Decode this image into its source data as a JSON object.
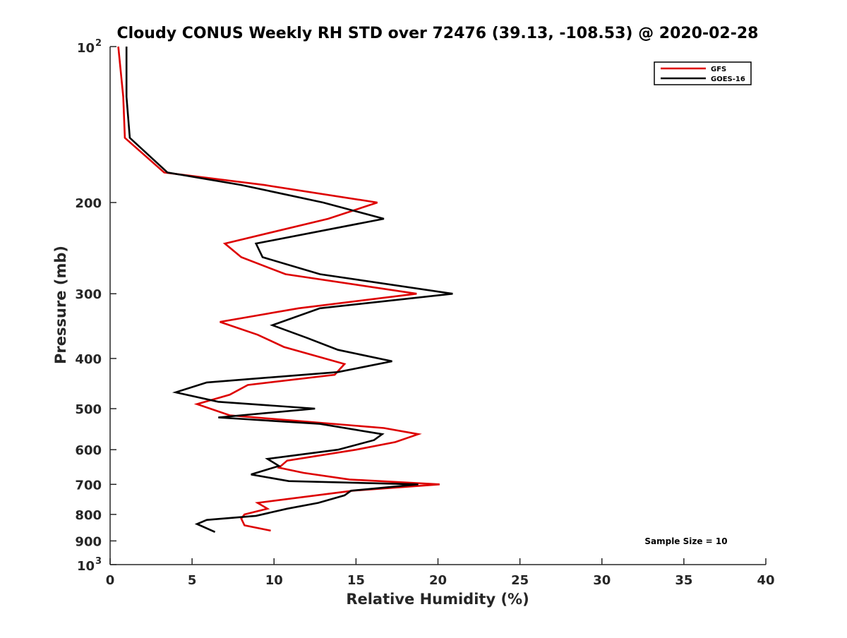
{
  "chart_data": {
    "type": "line",
    "title": "Cloudy CONUS Weekly RH STD over 72476 (39.13, -108.53) @ 2020-02-28",
    "xlabel": "Relative Humidity (%)",
    "ylabel": "Pressure (mb)",
    "xlim": [
      0,
      40
    ],
    "ylim": [
      100,
      1000
    ],
    "yscale": "log",
    "yaxis_reversed": true,
    "x_ticks": [
      "0",
      "5",
      "10",
      "15",
      "20",
      "25",
      "30",
      "35",
      "40"
    ],
    "y_ticks": [
      {
        "value": 100,
        "base": "10",
        "exp": "2"
      },
      {
        "value": 200,
        "label": "200"
      },
      {
        "value": 300,
        "label": "300"
      },
      {
        "value": 400,
        "label": "400"
      },
      {
        "value": 500,
        "label": "500"
      },
      {
        "value": 600,
        "label": "600"
      },
      {
        "value": 700,
        "label": "700"
      },
      {
        "value": 800,
        "label": "800"
      },
      {
        "value": 900,
        "label": "900"
      },
      {
        "value": 1000,
        "base": "10",
        "exp": "3"
      }
    ],
    "legend_position": "top-right",
    "grid": false,
    "annotation": "Sample Size = 10",
    "series": [
      {
        "name": "GFS",
        "color": "#dd0000",
        "points": [
          [
            0.5,
            100
          ],
          [
            0.8,
            125
          ],
          [
            0.9,
            150
          ],
          [
            3.3,
            175
          ],
          [
            9.4,
            185
          ],
          [
            16.3,
            200
          ],
          [
            13.3,
            215
          ],
          [
            7.0,
            240
          ],
          [
            8.0,
            255
          ],
          [
            10.7,
            275
          ],
          [
            18.7,
            300
          ],
          [
            11.5,
            320
          ],
          [
            6.7,
            340
          ],
          [
            9.0,
            360
          ],
          [
            10.6,
            380
          ],
          [
            14.3,
            410
          ],
          [
            13.7,
            430
          ],
          [
            8.4,
            450
          ],
          [
            7.3,
            470
          ],
          [
            5.3,
            490
          ],
          [
            7.3,
            515
          ],
          [
            16.7,
            545
          ],
          [
            18.8,
            560
          ],
          [
            17.4,
            580
          ],
          [
            15.0,
            600
          ],
          [
            10.8,
            630
          ],
          [
            10.3,
            650
          ],
          [
            11.8,
            665
          ],
          [
            14.6,
            685
          ],
          [
            20.1,
            700
          ],
          [
            14.8,
            720
          ],
          [
            9.0,
            760
          ],
          [
            9.6,
            780
          ],
          [
            8.2,
            800
          ],
          [
            8.0,
            815
          ],
          [
            8.2,
            840
          ],
          [
            9.8,
            860
          ]
        ]
      },
      {
        "name": "GOES-16",
        "color": "#000000",
        "points": [
          [
            1.0,
            100
          ],
          [
            1.0,
            125
          ],
          [
            1.2,
            150
          ],
          [
            3.5,
            175
          ],
          [
            8.0,
            185
          ],
          [
            13.0,
            200
          ],
          [
            16.7,
            215
          ],
          [
            8.9,
            240
          ],
          [
            9.3,
            255
          ],
          [
            12.8,
            275
          ],
          [
            20.9,
            300
          ],
          [
            12.8,
            320
          ],
          [
            9.9,
            345
          ],
          [
            12.0,
            365
          ],
          [
            13.9,
            385
          ],
          [
            17.2,
            405
          ],
          [
            13.9,
            425
          ],
          [
            5.9,
            445
          ],
          [
            4.0,
            465
          ],
          [
            6.6,
            485
          ],
          [
            12.5,
            500
          ],
          [
            6.6,
            520
          ],
          [
            12.8,
            535
          ],
          [
            16.6,
            560
          ],
          [
            16.1,
            575
          ],
          [
            13.9,
            600
          ],
          [
            9.6,
            625
          ],
          [
            10.3,
            645
          ],
          [
            8.6,
            670
          ],
          [
            10.9,
            690
          ],
          [
            18.8,
            700
          ],
          [
            14.7,
            720
          ],
          [
            14.3,
            735
          ],
          [
            12.7,
            760
          ],
          [
            10.8,
            780
          ],
          [
            8.9,
            805
          ],
          [
            5.9,
            820
          ],
          [
            5.3,
            835
          ],
          [
            6.4,
            865
          ]
        ]
      }
    ]
  }
}
